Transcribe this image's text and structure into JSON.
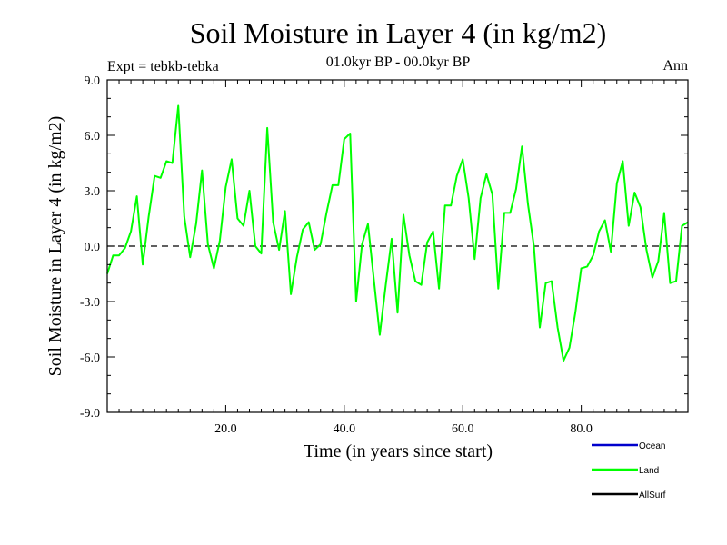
{
  "chart_data": {
    "type": "line",
    "title": "Soil Moisture in Layer 4 (in kg/m2)",
    "subtitle": "01.0kyr BP - 00.0kyr BP",
    "left_note": "Expt = tebkb-tebka",
    "right_note": "Ann",
    "xlabel": "Time (in years since start)",
    "ylabel": "Soil Moisture in Layer 4 (in kg/m2)",
    "xlim": [
      0,
      98
    ],
    "ylim": [
      -9,
      9
    ],
    "x_ticks": [
      20,
      40,
      60,
      80
    ],
    "x_tick_labels": [
      "20.0",
      "40.0",
      "60.0",
      "80.0"
    ],
    "y_ticks": [
      -9,
      -6,
      -3,
      0,
      3,
      6,
      9
    ],
    "y_tick_labels": [
      "-9.0",
      "-6.0",
      "-3.0",
      "0.0",
      "3.0",
      "6.0",
      "9.0"
    ],
    "reference_line": 0,
    "series": [
      {
        "name": "Land",
        "color": "#00ff00",
        "x": [
          0,
          1,
          2,
          3,
          4,
          5,
          6,
          7,
          8,
          9,
          10,
          11,
          12,
          13,
          14,
          15,
          16,
          17,
          18,
          19,
          20,
          21,
          22,
          23,
          24,
          25,
          26,
          27,
          28,
          29,
          30,
          31,
          32,
          33,
          34,
          35,
          36,
          37,
          38,
          39,
          40,
          41,
          42,
          43,
          44,
          45,
          46,
          47,
          48,
          49,
          50,
          51,
          52,
          53,
          54,
          55,
          56,
          57,
          58,
          59,
          60,
          61,
          62,
          63,
          64,
          65,
          66,
          67,
          68,
          69,
          70,
          71,
          72,
          73,
          74,
          75,
          76,
          77,
          78,
          79,
          80,
          81,
          82,
          83,
          84,
          85,
          86,
          87,
          88,
          89,
          90,
          91,
          92,
          93,
          94,
          95,
          96,
          97,
          98
        ],
        "values": [
          -1.5,
          -0.5,
          -0.5,
          -0.1,
          0.8,
          2.7,
          -1.0,
          1.6,
          3.8,
          3.7,
          4.6,
          4.5,
          7.6,
          1.6,
          -0.6,
          1.2,
          4.1,
          0.1,
          -1.2,
          0.3,
          3.2,
          4.7,
          1.5,
          1.1,
          3.0,
          0.0,
          -0.4,
          6.4,
          1.3,
          -0.2,
          1.9,
          -2.6,
          -0.6,
          0.9,
          1.3,
          -0.2,
          0.1,
          1.8,
          3.3,
          3.3,
          5.8,
          6.1,
          -3.0,
          0.1,
          1.2,
          -1.8,
          -4.8,
          -2.1,
          0.4,
          -3.6,
          1.7,
          -0.5,
          -1.9,
          -2.1,
          0.2,
          0.8,
          -2.3,
          2.2,
          2.2,
          3.8,
          4.7,
          2.6,
          -0.7,
          2.6,
          3.9,
          2.8,
          -2.3,
          1.8,
          1.8,
          3.1,
          5.4,
          2.3,
          0.0,
          -4.4,
          -2.0,
          -1.9,
          -4.4,
          -6.2,
          -5.5,
          -3.6,
          -1.2,
          -1.1,
          -0.5,
          0.8,
          1.4,
          -0.3,
          3.4,
          4.6,
          1.1,
          2.9,
          2.1,
          -0.2,
          -1.7,
          -0.8,
          1.8,
          -2.0,
          -1.9,
          1.1,
          1.3
        ]
      }
    ],
    "legend": {
      "placement": "bottom-right",
      "entries": [
        {
          "label": "Ocean",
          "color": "#0000cc"
        },
        {
          "label": "Land",
          "color": "#00ff00"
        },
        {
          "label": "AllSurf",
          "color": "#000000"
        }
      ]
    }
  }
}
